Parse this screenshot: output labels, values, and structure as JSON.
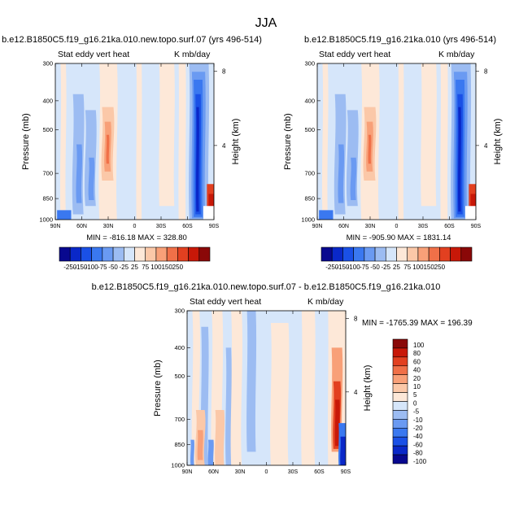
{
  "figure": {
    "title": "JJA"
  },
  "lat_ticks": [
    "90N",
    "60N",
    "30N",
    "0",
    "30S",
    "60S",
    "90S"
  ],
  "pressure_ticks": [
    {
      "label": "300",
      "p": 300
    },
    {
      "label": "400",
      "p": 400
    },
    {
      "label": "500",
      "p": 500
    },
    {
      "label": "700",
      "p": 700
    },
    {
      "label": "850",
      "p": 850
    },
    {
      "label": "1000",
      "p": 1000
    }
  ],
  "height_ticks": [
    {
      "label": "8",
      "km": 8
    },
    {
      "label": "4",
      "km": 4
    }
  ],
  "panels": [
    {
      "id": "top-left",
      "title": "b.e12.B1850C5.f19_g16.21ka.010.new.topo.surf.07 (yrs 496-514)",
      "left_label": "Stat eddy vert heat",
      "right_label": "K mb/day",
      "ylabel": "Pressure (mb)",
      "y2label": "Height (km)",
      "minmax": "MIN = -816.18   MAX = 328.80"
    },
    {
      "id": "top-right",
      "title": "b.e12.B1850C5.f19_g16.21ka.010 (yrs 496-514)",
      "left_label": "Stat eddy vert heat",
      "right_label": "K mb/day",
      "ylabel": "Pressure (mb)",
      "y2label": "Height (km)",
      "minmax": "MIN = -905.90   MAX = 1831.14"
    },
    {
      "id": "bottom",
      "title": "b.e12.B1850C5.f19_g16.21ka.010.new.topo.surf.07 - b.e12.B1850C5.f19_g16.21ka.010",
      "left_label": "Stat eddy vert heat",
      "right_label": "K mb/day",
      "ylabel": "Pressure (mb)",
      "y2label": "Height (km)",
      "minmax": "MIN = -1765.39   MAX = 196.39"
    }
  ],
  "colorbar_main": {
    "labels": [
      "-250",
      "-150",
      "-100",
      "-75",
      "-50",
      "-25",
      "25",
      "75",
      "100",
      "150",
      "250"
    ],
    "colors": [
      "#08088f",
      "#0a28c8",
      "#1a50e6",
      "#3a78f0",
      "#6a9af2",
      "#9cbcf2",
      "#d6e6fa",
      "#fde8d8",
      "#fbc8a8",
      "#f8a078",
      "#f07048",
      "#e24020",
      "#c81808",
      "#8a0808"
    ]
  },
  "colorbar_diff": {
    "labels": [
      "100",
      "80",
      "60",
      "40",
      "20",
      "10",
      "5",
      "0",
      "-5",
      "-10",
      "-20",
      "-40",
      "-60",
      "-80",
      "-100"
    ],
    "colors": [
      "#8a0808",
      "#c81808",
      "#e24020",
      "#f07048",
      "#f8a078",
      "#fbc8a8",
      "#fde8d8",
      "#d6e6fa",
      "#9cbcf2",
      "#6a9af2",
      "#3a78f0",
      "#1a50e6",
      "#0a28c8",
      "#08088f"
    ]
  },
  "chart_data": [
    {
      "type": "heatmap",
      "title": "b.e12.B1850C5.f19_g16.21ka.010.new.topo.surf.07 (yrs 496-514)",
      "xlabel": "",
      "ylabel": "Pressure (mb)",
      "y2label": "Height (km)",
      "x_ticks": [
        "90N",
        "60N",
        "30N",
        "0",
        "30S",
        "60S",
        "90S"
      ],
      "y_ticks": [
        300,
        400,
        500,
        700,
        850,
        1000
      ],
      "y_scale": "log",
      "ylim": [
        1000,
        300
      ],
      "units": "K mb/day",
      "contour_levels": [
        -250,
        -150,
        -100,
        -75,
        -50,
        -25,
        25,
        75,
        100,
        150,
        250
      ],
      "min": -816.18,
      "max": 328.8,
      "features": [
        {
          "lat_range": [
            "75S",
            "68S"
          ],
          "p_range": [
            300,
            1000
          ],
          "sign": "negative",
          "level": -250
        },
        {
          "lat_range": [
            "35N",
            "25N"
          ],
          "p_range": [
            450,
            700
          ],
          "sign": "positive",
          "level": 75
        },
        {
          "lat_range": [
            "65N",
            "45N"
          ],
          "p_range": [
            400,
            950
          ],
          "sign": "negative",
          "level": -50
        },
        {
          "lat_range": [
            "85S",
            "80S"
          ],
          "p_range": [
            800,
            950
          ],
          "sign": "positive",
          "level": 250
        }
      ]
    },
    {
      "type": "heatmap",
      "title": "b.e12.B1850C5.f19_g16.21ka.010 (yrs 496-514)",
      "xlabel": "",
      "ylabel": "Pressure (mb)",
      "y2label": "Height (km)",
      "x_ticks": [
        "90N",
        "60N",
        "30N",
        "0",
        "30S",
        "60S",
        "90S"
      ],
      "y_ticks": [
        300,
        400,
        500,
        700,
        850,
        1000
      ],
      "y_scale": "log",
      "ylim": [
        1000,
        300
      ],
      "units": "K mb/day",
      "contour_levels": [
        -250,
        -150,
        -100,
        -75,
        -50,
        -25,
        25,
        75,
        100,
        150,
        250
      ],
      "min": -905.9,
      "max": 1831.14,
      "features": [
        {
          "lat_range": [
            "75S",
            "68S"
          ],
          "p_range": [
            300,
            1000
          ],
          "sign": "negative",
          "level": -250
        },
        {
          "lat_range": [
            "35N",
            "25N"
          ],
          "p_range": [
            450,
            700
          ],
          "sign": "positive",
          "level": 75
        },
        {
          "lat_range": [
            "65N",
            "45N"
          ],
          "p_range": [
            400,
            950
          ],
          "sign": "negative",
          "level": -50
        },
        {
          "lat_range": [
            "85S",
            "80S"
          ],
          "p_range": [
            750,
            950
          ],
          "sign": "positive",
          "level": 250
        }
      ]
    },
    {
      "type": "heatmap",
      "title": "b.e12.B1850C5.f19_g16.21ka.010.new.topo.surf.07 - b.e12.B1850C5.f19_g16.21ka.010",
      "xlabel": "",
      "ylabel": "Pressure (mb)",
      "y2label": "Height (km)",
      "x_ticks": [
        "90N",
        "60N",
        "30N",
        "0",
        "30S",
        "60S",
        "90S"
      ],
      "y_ticks": [
        300,
        400,
        500,
        700,
        850,
        1000
      ],
      "y_scale": "log",
      "ylim": [
        1000,
        300
      ],
      "units": "K mb/day",
      "contour_levels": [
        -100,
        -80,
        -60,
        -40,
        -20,
        -10,
        -5,
        0,
        5,
        10,
        20,
        40,
        60,
        80,
        100
      ],
      "min": -1765.39,
      "max": 196.39,
      "features": [
        {
          "lat_range": [
            "85S",
            "75S"
          ],
          "p_range": [
            600,
            950
          ],
          "sign": "positive",
          "level": 100
        },
        {
          "lat_range": [
            "85S",
            "78S"
          ],
          "p_range": [
            750,
            1000
          ],
          "sign": "negative",
          "level": -100
        },
        {
          "lat_range": [
            "90N",
            "60N"
          ],
          "p_range": [
            700,
            1000
          ],
          "sign": "mixed",
          "level": 20
        }
      ]
    }
  ]
}
